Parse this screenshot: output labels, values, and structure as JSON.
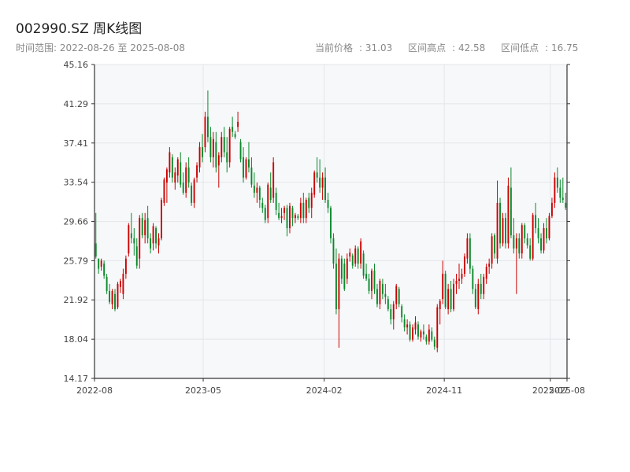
{
  "title": "002990.SZ 周K线图",
  "range_label": "时间范围",
  "range_start": "2022-08-26",
  "range_connector": "至",
  "range_end": "2025-08-08",
  "stats": {
    "current_label": "当前价格",
    "current_value": "31.03",
    "high_label": "区间高点",
    "high_value": "42.58",
    "low_label": "区间低点",
    "low_value": "16.75"
  },
  "colors": {
    "up": "#cc0000",
    "down": "#0a8a2a",
    "grid": "#e3e6ea",
    "plot_bg": "#f7f8fa",
    "axis": "#333333"
  },
  "chart_data": {
    "type": "candlestick",
    "ylim": [
      14.17,
      45.16
    ],
    "y_ticks": [
      "45.16",
      "41.29",
      "37.41",
      "33.54",
      "29.66",
      "25.79",
      "21.92",
      "18.04",
      "14.17"
    ],
    "x_ticks": [
      {
        "label": "2022-08",
        "date": "2022-08-26"
      },
      {
        "label": "2023-05",
        "date": "2023-05-01"
      },
      {
        "label": "2024-02",
        "date": "2024-02-01"
      },
      {
        "label": "2024-11",
        "date": "2024-11-01"
      },
      {
        "label": "2025-07",
        "date": "2025-07-01"
      },
      {
        "label": "2025-08",
        "date": "2025-08-08"
      }
    ],
    "start_date": "2022-08-26",
    "ohlc": [
      [
        27.5,
        30.5,
        26,
        26.2
      ],
      [
        26,
        26,
        24.5,
        25
      ],
      [
        25.2,
        26,
        24.8,
        25.8
      ],
      [
        25.5,
        25.8,
        24,
        24.3
      ],
      [
        24.2,
        24.5,
        22.5,
        22.8
      ],
      [
        22.8,
        23.5,
        21.5,
        21.7
      ],
      [
        21.5,
        23,
        21,
        22.8
      ],
      [
        22.5,
        23,
        20.8,
        21
      ],
      [
        21.2,
        23.7,
        21,
        23.5
      ],
      [
        23.2,
        24,
        22.6,
        23.8
      ],
      [
        22.5,
        25,
        22,
        24.5
      ],
      [
        24.5,
        26.3,
        24,
        26
      ],
      [
        26.5,
        29.5,
        26.2,
        29.3
      ],
      [
        28.5,
        30.5,
        27.5,
        28
      ],
      [
        28,
        29,
        26.3,
        27.5
      ],
      [
        27.2,
        28,
        25,
        25.3
      ],
      [
        26,
        30.3,
        25,
        30
      ],
      [
        30,
        30.5,
        28,
        28.3
      ],
      [
        28.3,
        30.5,
        27.5,
        29.8
      ],
      [
        30,
        31.2,
        27.5,
        28
      ],
      [
        28,
        28.5,
        26.5,
        27
      ],
      [
        27.5,
        29.5,
        26.8,
        29.2
      ],
      [
        29,
        29.2,
        27,
        27.5
      ],
      [
        27.3,
        28.5,
        26.5,
        28
      ],
      [
        28,
        32,
        27.8,
        31.8
      ],
      [
        31.5,
        34,
        31.2,
        33.8
      ],
      [
        33.5,
        35,
        31.5,
        34.8
      ],
      [
        34.5,
        37,
        34,
        36.5
      ],
      [
        36,
        36.3,
        33.5,
        34
      ],
      [
        33.5,
        35,
        32.8,
        34.5
      ],
      [
        34.2,
        36,
        33.5,
        35.8
      ],
      [
        35.5,
        36.5,
        33,
        33.3
      ],
      [
        33.5,
        34.5,
        32.3,
        32.5
      ],
      [
        32.5,
        35.5,
        32,
        35
      ],
      [
        35,
        36,
        33,
        33.5
      ],
      [
        33.2,
        33.5,
        31.2,
        31.5
      ],
      [
        31.5,
        34,
        31,
        33.8
      ],
      [
        34,
        35.5,
        33.5,
        35.2
      ],
      [
        35,
        37.5,
        34.5,
        37
      ],
      [
        37,
        38.3,
        35.5,
        36
      ],
      [
        37,
        40.5,
        36.5,
        40
      ],
      [
        40,
        42.6,
        37.5,
        38
      ],
      [
        38,
        39,
        35.5,
        36
      ],
      [
        36,
        38.5,
        35,
        37.8
      ],
      [
        37.5,
        38.5,
        34.5,
        35
      ],
      [
        35.2,
        36.5,
        33,
        36.2
      ],
      [
        36,
        38.5,
        35.5,
        38
      ],
      [
        38,
        39,
        36,
        36.5
      ],
      [
        36.5,
        38,
        34.5,
        35.5
      ],
      [
        35.5,
        39,
        35,
        38.8
      ],
      [
        39,
        40,
        38,
        38.5
      ],
      [
        38.3,
        38.6,
        37.8,
        38
      ],
      [
        39,
        40.5,
        38.5,
        39.5
      ],
      [
        37.5,
        37.8,
        35.5,
        35.8
      ],
      [
        36,
        37,
        33.5,
        34
      ],
      [
        34,
        36,
        33.8,
        35.8
      ],
      [
        35.8,
        37.5,
        34.5,
        35
      ],
      [
        35,
        36,
        33,
        33.3
      ],
      [
        33.2,
        34.5,
        32,
        32.5
      ],
      [
        32.5,
        33.5,
        31.5,
        33
      ],
      [
        33,
        33.2,
        31,
        31.8
      ],
      [
        31.5,
        32,
        30.5,
        31
      ],
      [
        31,
        31.3,
        29.5,
        29.8
      ],
      [
        30,
        33.5,
        29.5,
        33.3
      ],
      [
        33,
        34.5,
        31.5,
        31.8
      ],
      [
        32,
        36,
        31.5,
        35.5
      ],
      [
        32.5,
        33,
        30.3,
        30.8
      ],
      [
        30.5,
        31.5,
        29.8,
        30
      ],
      [
        30,
        31,
        29.5,
        30.2
      ],
      [
        30.5,
        31.2,
        29.8,
        31
      ],
      [
        31,
        31.3,
        28.2,
        29
      ],
      [
        29,
        31.5,
        28.5,
        31.2
      ],
      [
        31,
        31.2,
        29.2,
        30
      ],
      [
        30,
        30.5,
        29.5,
        30.3
      ],
      [
        30.2,
        30.4,
        29.8,
        30
      ],
      [
        30,
        32,
        29.5,
        31.5
      ],
      [
        31.5,
        32.5,
        29.5,
        30
      ],
      [
        30,
        32,
        29.5,
        31.8
      ],
      [
        32,
        32.5,
        30.5,
        31
      ],
      [
        31,
        33,
        30,
        32.5
      ],
      [
        32.3,
        34.7,
        32,
        34.5
      ],
      [
        34.5,
        36,
        33.5,
        34
      ],
      [
        34,
        35.8,
        32.5,
        33
      ],
      [
        33,
        34.5,
        31.8,
        34
      ],
      [
        34,
        35,
        31.5,
        31.8
      ],
      [
        31.8,
        32.5,
        30.5,
        31
      ],
      [
        31,
        31.2,
        27.5,
        28
      ],
      [
        28,
        28.5,
        25,
        25.5
      ],
      [
        25.5,
        27,
        20.5,
        21
      ],
      [
        21,
        26.5,
        17.2,
        26
      ],
      [
        26,
        26.3,
        23.5,
        24
      ],
      [
        25.5,
        26,
        22.8,
        23
      ],
      [
        24,
        26.5,
        23.5,
        26
      ],
      [
        26.2,
        27,
        25.7,
        26.6
      ],
      [
        26.3,
        26.5,
        25,
        25.3
      ],
      [
        25.5,
        27.3,
        25.2,
        27
      ],
      [
        27,
        27.2,
        25,
        25.5
      ],
      [
        25.5,
        28,
        25,
        27.7
      ],
      [
        26.5,
        26.8,
        24,
        24.3
      ],
      [
        24.5,
        25.5,
        23.8,
        24
      ],
      [
        24,
        24.5,
        22.5,
        22.8
      ],
      [
        22.8,
        25,
        22,
        24.8
      ],
      [
        24.8,
        25.5,
        22.5,
        23
      ],
      [
        23,
        23.5,
        21.2,
        21.5
      ],
      [
        21.5,
        24,
        21,
        23.8
      ],
      [
        23.5,
        24,
        22,
        22.5
      ],
      [
        22.5,
        23.5,
        21.5,
        22.2
      ],
      [
        22,
        22.3,
        20.8,
        21
      ],
      [
        21,
        21.5,
        19.5,
        20
      ],
      [
        20,
        21.8,
        19,
        21.5
      ],
      [
        21.5,
        23.5,
        21,
        23.3
      ],
      [
        23,
        23.2,
        21.2,
        21.5
      ],
      [
        21.3,
        21.5,
        19.7,
        20.2
      ],
      [
        20,
        20.5,
        18.8,
        19.2
      ],
      [
        19.2,
        20,
        18.5,
        19.5
      ],
      [
        19.5,
        19.8,
        17.8,
        18
      ],
      [
        18,
        19.5,
        17.8,
        19.2
      ],
      [
        19,
        20.3,
        18.5,
        19.7
      ],
      [
        19.5,
        19.8,
        18,
        18.3
      ],
      [
        18.2,
        19,
        17.8,
        18.8
      ],
      [
        18.8,
        19.5,
        18,
        18.5
      ],
      [
        18.3,
        18.5,
        17.5,
        17.8
      ],
      [
        17.8,
        19.5,
        17.5,
        19
      ],
      [
        18.8,
        19.2,
        17.8,
        18
      ],
      [
        18,
        18.3,
        17,
        17.3
      ],
      [
        17.2,
        21.5,
        16.75,
        21.2
      ],
      [
        21,
        22,
        19.5,
        21.8
      ],
      [
        22,
        25.8,
        21.5,
        24.5
      ],
      [
        24.5,
        24.8,
        21,
        21.2
      ],
      [
        21,
        23.5,
        20.5,
        23
      ],
      [
        23,
        23.8,
        20.7,
        21
      ],
      [
        21,
        24,
        20.8,
        23.5
      ],
      [
        23.5,
        24.5,
        22.5,
        23.8
      ],
      [
        23.8,
        25.5,
        23,
        24
      ],
      [
        24,
        25,
        23.5,
        24.5
      ],
      [
        24.5,
        26.5,
        24.2,
        26.2
      ],
      [
        26,
        28.5,
        25.5,
        28
      ],
      [
        28,
        28.5,
        24.5,
        25
      ],
      [
        25,
        25.3,
        22.5,
        23
      ],
      [
        23,
        23.5,
        21,
        21.2
      ],
      [
        21,
        24,
        20.5,
        23.5
      ],
      [
        23.5,
        24.5,
        22,
        22.5
      ],
      [
        22.5,
        24.5,
        22,
        24.2
      ],
      [
        24,
        25.5,
        23.5,
        25.2
      ],
      [
        25.2,
        26,
        24.5,
        25.5
      ],
      [
        25.5,
        28.5,
        25,
        28.2
      ],
      [
        28.3,
        28.5,
        26,
        26.5
      ],
      [
        26,
        33.7,
        25.5,
        31.5
      ],
      [
        31.5,
        32,
        27,
        27.5
      ],
      [
        27.5,
        30.5,
        27.2,
        30
      ],
      [
        30,
        30.5,
        27,
        27.5
      ],
      [
        27.5,
        34,
        27,
        33.2
      ],
      [
        33,
        35,
        28,
        28.3
      ],
      [
        28.3,
        30,
        26.5,
        27
      ],
      [
        27,
        28.5,
        22.5,
        28
      ],
      [
        28,
        28.5,
        26,
        26.5
      ],
      [
        26.5,
        29.5,
        26,
        29.3
      ],
      [
        29.3,
        29.5,
        27.5,
        28
      ],
      [
        28,
        28.5,
        27,
        27.3
      ],
      [
        27.3,
        28,
        25.8,
        26
      ],
      [
        26,
        30.5,
        25.8,
        30.3
      ],
      [
        30.3,
        31.5,
        28.5,
        29
      ],
      [
        29,
        30,
        27.5,
        28
      ],
      [
        28,
        28.5,
        26.5,
        26.8
      ],
      [
        26.8,
        29.5,
        26.5,
        29
      ],
      [
        29,
        30,
        27.5,
        28
      ],
      [
        28,
        30.5,
        27.8,
        30.2
      ],
      [
        30.2,
        32,
        30,
        31.5
      ],
      [
        31.5,
        34.5,
        31,
        34
      ],
      [
        34,
        35,
        32.5,
        33
      ],
      [
        33,
        33.8,
        31.5,
        32
      ],
      [
        32,
        34,
        31.5,
        31.8
      ],
      [
        31.5,
        32.5,
        30.8,
        31.03
      ]
    ],
    "x_label_dates": [
      "2022-08-26",
      "2025-08-08"
    ]
  }
}
